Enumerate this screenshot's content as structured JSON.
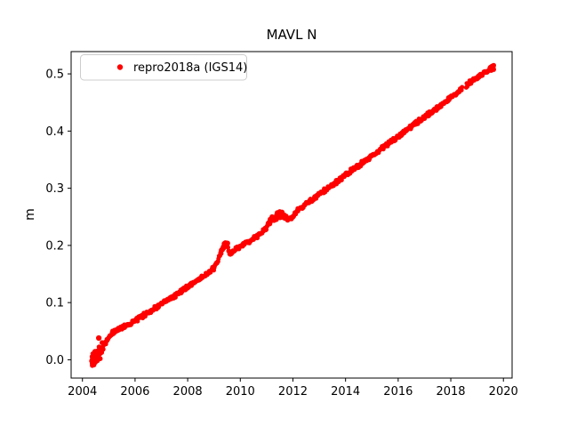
{
  "chart_data": {
    "type": "scatter",
    "title": "MAVL N",
    "xlabel": "",
    "ylabel": "m",
    "grid": false,
    "xlim": [
      2003.57,
      2020.33
    ],
    "ylim": [
      -0.032,
      0.539
    ],
    "x_ticks": [
      2004,
      2006,
      2008,
      2010,
      2012,
      2014,
      2016,
      2018,
      2020
    ],
    "x_tick_labels": [
      "2004",
      "2006",
      "2008",
      "2010",
      "2012",
      "2014",
      "2016",
      "2018",
      "2020"
    ],
    "y_ticks": [
      0.0,
      0.1,
      0.2,
      0.3,
      0.4,
      0.5
    ],
    "y_tick_labels": [
      "0.0",
      "0.1",
      "0.2",
      "0.3",
      "0.4",
      "0.5"
    ],
    "legend": {
      "position": "upper left",
      "entries": [
        {
          "label": "repro2018a (IGS14)",
          "marker": "dot-icon",
          "color": "#ff0000"
        }
      ]
    },
    "series": [
      {
        "name": "repro2018a (IGS14)",
        "color": "#ff0000",
        "start_year": 2004.35,
        "end_year": 2019.63,
        "approx_rate_m_per_yr": 0.0335,
        "trend_points": [
          [
            2004.35,
            -0.003
          ],
          [
            2004.5,
            0.004
          ],
          [
            2004.65,
            0.013
          ],
          [
            2004.8,
            0.026
          ],
          [
            2005.0,
            0.038
          ],
          [
            2005.15,
            0.047
          ],
          [
            2005.35,
            0.053
          ],
          [
            2005.6,
            0.059
          ],
          [
            2005.85,
            0.064
          ],
          [
            2006.1,
            0.071
          ],
          [
            2006.4,
            0.08
          ],
          [
            2006.7,
            0.089
          ],
          [
            2007.0,
            0.097
          ],
          [
            2007.3,
            0.106
          ],
          [
            2007.6,
            0.115
          ],
          [
            2007.9,
            0.125
          ],
          [
            2008.2,
            0.134
          ],
          [
            2008.5,
            0.143
          ],
          [
            2008.8,
            0.152
          ],
          [
            2009.0,
            0.16
          ],
          [
            2009.15,
            0.174
          ],
          [
            2009.3,
            0.191
          ],
          [
            2009.42,
            0.203
          ],
          [
            2009.52,
            0.2
          ],
          [
            2009.6,
            0.185
          ],
          [
            2009.75,
            0.19
          ],
          [
            2009.95,
            0.196
          ],
          [
            2010.2,
            0.204
          ],
          [
            2010.5,
            0.212
          ],
          [
            2010.8,
            0.221
          ],
          [
            2011.0,
            0.232
          ],
          [
            2011.15,
            0.245
          ],
          [
            2011.4,
            0.251
          ],
          [
            2011.6,
            0.255
          ],
          [
            2011.8,
            0.245
          ],
          [
            2012.0,
            0.25
          ],
          [
            2012.2,
            0.262
          ],
          [
            2012.45,
            0.271
          ],
          [
            2012.7,
            0.279
          ],
          [
            2013.0,
            0.289
          ],
          [
            2013.3,
            0.299
          ],
          [
            2013.6,
            0.309
          ],
          [
            2013.9,
            0.319
          ],
          [
            2014.2,
            0.33
          ],
          [
            2014.5,
            0.34
          ],
          [
            2014.8,
            0.35
          ],
          [
            2015.1,
            0.36
          ],
          [
            2015.4,
            0.37
          ],
          [
            2015.7,
            0.381
          ],
          [
            2016.0,
            0.391
          ],
          [
            2016.3,
            0.401
          ],
          [
            2016.6,
            0.411
          ],
          [
            2016.9,
            0.421
          ],
          [
            2017.2,
            0.431
          ],
          [
            2017.5,
            0.441
          ],
          [
            2017.8,
            0.451
          ],
          [
            2018.05,
            0.46
          ],
          [
            2018.25,
            0.468
          ],
          [
            2018.42,
            0.474
          ],
          [
            2018.6,
            0.48
          ],
          [
            2018.85,
            0.489
          ],
          [
            2019.05,
            0.496
          ],
          [
            2019.25,
            0.501
          ],
          [
            2019.4,
            0.504
          ],
          [
            2019.5,
            0.509
          ],
          [
            2019.58,
            0.512
          ],
          [
            2019.63,
            0.51
          ]
        ],
        "outliers": [
          [
            2004.62,
            0.038
          ]
        ],
        "gaps": [
          [
            2018.44,
            2018.58
          ]
        ],
        "dense_clusters": [
          [
            2004.35,
            2004.8
          ],
          [
            2009.25,
            2009.52
          ],
          [
            2011.05,
            2011.65
          ],
          [
            2019.48,
            2019.63
          ]
        ]
      }
    ]
  },
  "colors": {
    "marker": "#ff0000",
    "spine": "#000000",
    "text": "#000000",
    "legend_border": "#cccccc",
    "background": "#ffffff"
  }
}
